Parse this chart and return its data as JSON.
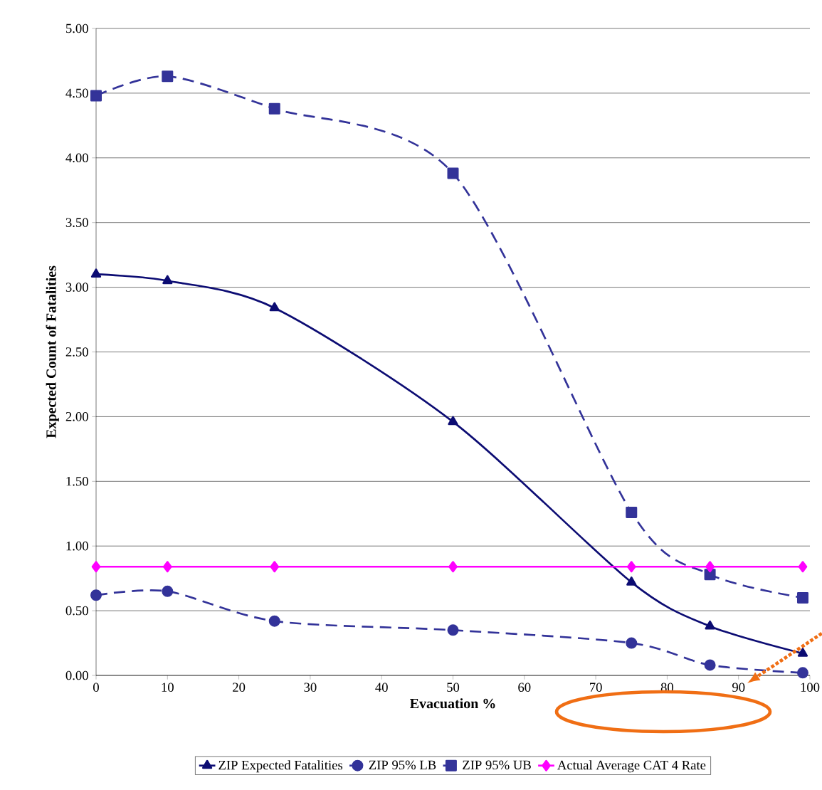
{
  "chart_data": {
    "type": "line",
    "xlabel": "Evacuation %",
    "ylabel": "Expected Count of Fatalities",
    "x": [
      0,
      10,
      25,
      50,
      75,
      86,
      99
    ],
    "series": [
      {
        "name": "ZIP Expected Fatalities",
        "color": "#0c0c73",
        "values": [
          3.1,
          3.05,
          2.84,
          1.96,
          0.72,
          0.38,
          0.17
        ],
        "marker": "triangle",
        "line_style": "solid"
      },
      {
        "name": "ZIP 95% LB",
        "color": "#333399",
        "values": [
          0.62,
          0.65,
          0.42,
          0.35,
          0.25,
          0.08,
          0.02
        ],
        "marker": "circle",
        "line_style": "dashed"
      },
      {
        "name": "ZIP 95% UB",
        "color": "#333399",
        "values": [
          4.48,
          4.63,
          4.38,
          3.88,
          1.26,
          0.78,
          0.6
        ],
        "marker": "square",
        "line_style": "dashed"
      },
      {
        "name": "Actual Average CAT 4 Rate",
        "color": "#ff00ff",
        "values": [
          0.84,
          0.84,
          0.84,
          0.84,
          0.84,
          0.84,
          0.84
        ],
        "marker": "diamond",
        "line_style": "solid"
      }
    ],
    "xlim": [
      0,
      100
    ],
    "ylim": [
      0,
      5
    ],
    "xticks": [
      0,
      10,
      20,
      30,
      40,
      50,
      60,
      70,
      80,
      90,
      100
    ],
    "yticks": [
      {
        "value": 0,
        "label": "0.00"
      },
      {
        "value": 0.5,
        "label": "0.50"
      },
      {
        "value": 1,
        "label": "1.00"
      },
      {
        "value": 1.5,
        "label": "1.50"
      },
      {
        "value": 2,
        "label": "2.00"
      },
      {
        "value": 2.5,
        "label": "2.50"
      },
      {
        "value": 3,
        "label": "3.00"
      },
      {
        "value": 3.5,
        "label": "3.50"
      },
      {
        "value": 4,
        "label": "4.00"
      },
      {
        "value": 4.5,
        "label": "4.50"
      },
      {
        "value": 5,
        "label": "5.00"
      }
    ],
    "grid": "y",
    "legend": "bottom"
  }
}
